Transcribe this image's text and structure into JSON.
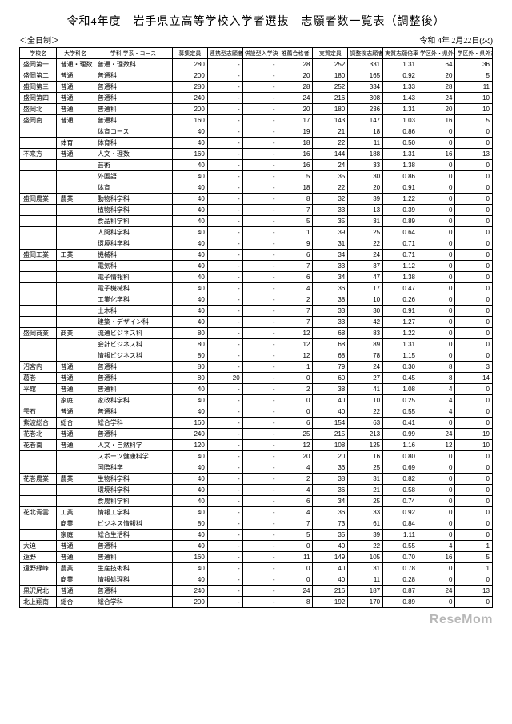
{
  "title": "令和4年度　岩手県立高等学校入学者選抜　志願者数一覧表（調整後）",
  "subtitle_left": "＜全日制＞",
  "subtitle_right": "令和 4年 2月22日(火)",
  "watermark": "ReseMom",
  "headers": [
    "学校名",
    "大学科名",
    "学科,学系・コース",
    "募集定員",
    "連携型志願者",
    "併設型入学決定者",
    "推薦合格者",
    "実質定員",
    "調整後志願者数",
    "実質志願倍率",
    "学区外・県外最大入学者数",
    "学区外・県外志願者数"
  ],
  "rows": [
    {
      "school": "盛岡第一",
      "major": "普通・理数",
      "course": "普通・理数科",
      "c": [
        280,
        "-",
        "-",
        28,
        252,
        331,
        "1.31",
        64,
        36
      ]
    },
    {
      "school": "盛岡第二",
      "major": "普通",
      "course": "普通科",
      "c": [
        200,
        "-",
        "-",
        20,
        180,
        165,
        "0.92",
        20,
        5
      ]
    },
    {
      "school": "盛岡第三",
      "major": "普通",
      "course": "普通科",
      "c": [
        280,
        "-",
        "-",
        28,
        252,
        334,
        "1.33",
        28,
        11
      ]
    },
    {
      "school": "盛岡第四",
      "major": "普通",
      "course": "普通科",
      "c": [
        240,
        "-",
        "-",
        24,
        216,
        308,
        "1.43",
        24,
        10
      ]
    },
    {
      "school": "盛岡北",
      "major": "普通",
      "course": "普通科",
      "c": [
        200,
        "-",
        "-",
        20,
        180,
        236,
        "1.31",
        20,
        10
      ]
    },
    {
      "school": "盛岡南",
      "major": "普通",
      "course": "普通科",
      "c": [
        160,
        "-",
        "-",
        17,
        143,
        147,
        "1.03",
        16,
        5
      ]
    },
    {
      "school": "",
      "major": "",
      "course": "体育コース",
      "c": [
        40,
        "-",
        "-",
        19,
        21,
        18,
        "0.86",
        0,
        0
      ]
    },
    {
      "school": "",
      "major": "体育",
      "course": "体育科",
      "c": [
        40,
        "-",
        "-",
        18,
        22,
        11,
        "0.50",
        0,
        0
      ]
    },
    {
      "school": "不来方",
      "major": "普通",
      "course": "人文・理数",
      "c": [
        160,
        "-",
        "-",
        16,
        144,
        188,
        "1.31",
        16,
        13
      ]
    },
    {
      "school": "",
      "major": "",
      "course": "芸術",
      "c": [
        40,
        "-",
        "-",
        16,
        24,
        33,
        "1.38",
        0,
        0
      ]
    },
    {
      "school": "",
      "major": "",
      "course": "外国語",
      "c": [
        40,
        "-",
        "-",
        5,
        35,
        30,
        "0.86",
        0,
        0
      ]
    },
    {
      "school": "",
      "major": "",
      "course": "体育",
      "c": [
        40,
        "-",
        "-",
        18,
        22,
        20,
        "0.91",
        0,
        0
      ]
    },
    {
      "school": "盛岡農業",
      "major": "農業",
      "course": "動物科学科",
      "c": [
        40,
        "-",
        "-",
        8,
        32,
        39,
        "1.22",
        0,
        0
      ]
    },
    {
      "school": "",
      "major": "",
      "course": "植物科学科",
      "c": [
        40,
        "-",
        "-",
        7,
        33,
        13,
        "0.39",
        0,
        0
      ]
    },
    {
      "school": "",
      "major": "",
      "course": "食品科学科",
      "c": [
        40,
        "-",
        "-",
        5,
        35,
        31,
        "0.89",
        0,
        0
      ]
    },
    {
      "school": "",
      "major": "",
      "course": "人間科学科",
      "c": [
        40,
        "-",
        "-",
        1,
        39,
        25,
        "0.64",
        0,
        0
      ]
    },
    {
      "school": "",
      "major": "",
      "course": "環境科学科",
      "c": [
        40,
        "-",
        "-",
        9,
        31,
        22,
        "0.71",
        0,
        0
      ]
    },
    {
      "school": "盛岡工業",
      "major": "工業",
      "course": "機械科",
      "c": [
        40,
        "-",
        "-",
        6,
        34,
        24,
        "0.71",
        0,
        0
      ]
    },
    {
      "school": "",
      "major": "",
      "course": "電気科",
      "c": [
        40,
        "-",
        "-",
        7,
        33,
        37,
        "1.12",
        0,
        0
      ]
    },
    {
      "school": "",
      "major": "",
      "course": "電子情報科",
      "c": [
        40,
        "-",
        "-",
        6,
        34,
        47,
        "1.38",
        0,
        0
      ]
    },
    {
      "school": "",
      "major": "",
      "course": "電子機械科",
      "c": [
        40,
        "-",
        "-",
        4,
        36,
        17,
        "0.47",
        0,
        0
      ]
    },
    {
      "school": "",
      "major": "",
      "course": "工業化学科",
      "c": [
        40,
        "-",
        "-",
        2,
        38,
        10,
        "0.26",
        0,
        0
      ]
    },
    {
      "school": "",
      "major": "",
      "course": "土木科",
      "c": [
        40,
        "-",
        "-",
        7,
        33,
        30,
        "0.91",
        0,
        0
      ]
    },
    {
      "school": "",
      "major": "",
      "course": "建築・デザイン科",
      "c": [
        40,
        "-",
        "-",
        7,
        33,
        42,
        "1.27",
        0,
        0
      ]
    },
    {
      "school": "盛岡商業",
      "major": "商業",
      "course": "流通ビジネス科",
      "c": [
        80,
        "-",
        "-",
        12,
        68,
        83,
        "1.22",
        0,
        0
      ]
    },
    {
      "school": "",
      "major": "",
      "course": "会計ビジネス科",
      "c": [
        80,
        "-",
        "-",
        12,
        68,
        89,
        "1.31",
        0,
        0
      ]
    },
    {
      "school": "",
      "major": "",
      "course": "情報ビジネス科",
      "c": [
        80,
        "-",
        "-",
        12,
        68,
        78,
        "1.15",
        0,
        0
      ]
    },
    {
      "school": "沼宮内",
      "major": "普通",
      "course": "普通科",
      "c": [
        80,
        "-",
        "-",
        1,
        79,
        24,
        "0.30",
        8,
        3
      ]
    },
    {
      "school": "葛巻",
      "major": "普通",
      "course": "普通科",
      "c": [
        80,
        20,
        "-",
        0,
        60,
        27,
        "0.45",
        8,
        14
      ]
    },
    {
      "school": "平舘",
      "major": "普通",
      "course": "普通科",
      "c": [
        40,
        "-",
        "-",
        2,
        38,
        41,
        "1.08",
        4,
        0
      ]
    },
    {
      "school": "",
      "major": "家庭",
      "course": "家政科学科",
      "c": [
        40,
        "-",
        "-",
        0,
        40,
        10,
        "0.25",
        4,
        0
      ]
    },
    {
      "school": "雫石",
      "major": "普通",
      "course": "普通科",
      "c": [
        40,
        "-",
        "-",
        0,
        40,
        22,
        "0.55",
        4,
        0
      ]
    },
    {
      "school": "紫波総合",
      "major": "総合",
      "course": "総合学科",
      "c": [
        160,
        "-",
        "-",
        6,
        154,
        63,
        "0.41",
        0,
        0
      ]
    },
    {
      "school": "花巻北",
      "major": "普通",
      "course": "普通科",
      "c": [
        240,
        "-",
        "-",
        25,
        215,
        213,
        "0.99",
        24,
        19
      ]
    },
    {
      "school": "花巻南",
      "major": "普通",
      "course": "人文・自然科学",
      "c": [
        120,
        "-",
        "-",
        12,
        108,
        125,
        "1.16",
        12,
        10
      ]
    },
    {
      "school": "",
      "major": "",
      "course": "スポーツ健康科学",
      "c": [
        40,
        "-",
        "-",
        20,
        20,
        16,
        "0.80",
        0,
        0
      ]
    },
    {
      "school": "",
      "major": "",
      "course": "国際科学",
      "c": [
        40,
        "-",
        "-",
        4,
        36,
        25,
        "0.69",
        0,
        0
      ]
    },
    {
      "school": "花巻農業",
      "major": "農業",
      "course": "生物科学科",
      "c": [
        40,
        "-",
        "-",
        2,
        38,
        31,
        "0.82",
        0,
        0
      ]
    },
    {
      "school": "",
      "major": "",
      "course": "環境科学科",
      "c": [
        40,
        "-",
        "-",
        4,
        36,
        21,
        "0.58",
        0,
        0
      ]
    },
    {
      "school": "",
      "major": "",
      "course": "食農科学科",
      "c": [
        40,
        "-",
        "-",
        6,
        34,
        25,
        "0.74",
        0,
        0
      ]
    },
    {
      "school": "花北青雲",
      "major": "工業",
      "course": "情報工学科",
      "c": [
        40,
        "-",
        "-",
        4,
        36,
        33,
        "0.92",
        0,
        0
      ]
    },
    {
      "school": "",
      "major": "商業",
      "course": "ビジネス情報科",
      "c": [
        80,
        "-",
        "-",
        7,
        73,
        61,
        "0.84",
        0,
        0
      ]
    },
    {
      "school": "",
      "major": "家庭",
      "course": "総合生活科",
      "c": [
        40,
        "-",
        "-",
        5,
        35,
        39,
        "1.11",
        0,
        0
      ]
    },
    {
      "school": "大迫",
      "major": "普通",
      "course": "普通科",
      "c": [
        40,
        "-",
        "-",
        0,
        40,
        22,
        "0.55",
        4,
        1
      ]
    },
    {
      "school": "遠野",
      "major": "普通",
      "course": "普通科",
      "c": [
        160,
        "-",
        "-",
        11,
        149,
        105,
        "0.70",
        16,
        5
      ]
    },
    {
      "school": "遠野緑峰",
      "major": "農業",
      "course": "生産技術科",
      "c": [
        40,
        "-",
        "-",
        0,
        40,
        31,
        "0.78",
        0,
        1
      ]
    },
    {
      "school": "",
      "major": "商業",
      "course": "情報処理科",
      "c": [
        40,
        "-",
        "-",
        0,
        40,
        11,
        "0.28",
        0,
        0
      ]
    },
    {
      "school": "黒沢尻北",
      "major": "普通",
      "course": "普通科",
      "c": [
        240,
        "-",
        "-",
        24,
        216,
        187,
        "0.87",
        24,
        13
      ]
    },
    {
      "school": "北上翔南",
      "major": "総合",
      "course": "総合学科",
      "c": [
        200,
        "-",
        "-",
        8,
        192,
        170,
        "0.89",
        0,
        0
      ]
    }
  ]
}
